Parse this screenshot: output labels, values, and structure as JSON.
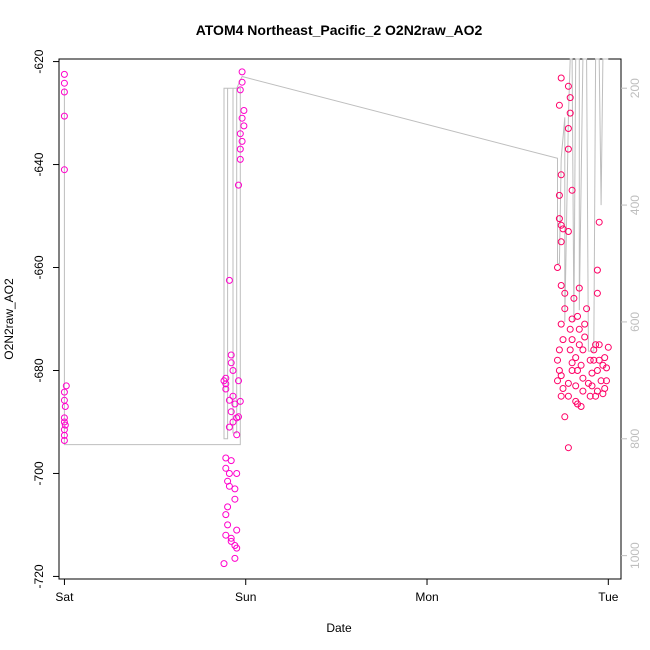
{
  "chart_data": {
    "type": "scatter",
    "title": "ATOM4 Northeast_Pacific_2 O2N2raw_AO2",
    "xlabel": "Date",
    "ylabel": "O2N2raw_AO2",
    "x_unit": "days",
    "xlim": [
      -0.03,
      3.07
    ],
    "ylim": [
      -720.5,
      -619.5
    ],
    "x_ticks": [
      {
        "value": 0,
        "label": "Sat"
      },
      {
        "value": 1,
        "label": "Sun"
      },
      {
        "value": 2,
        "label": "Mon"
      },
      {
        "value": 3,
        "label": "Tue"
      }
    ],
    "y_ticks": [
      {
        "value": -620,
        "label": "-620"
      },
      {
        "value": -640,
        "label": "-640"
      },
      {
        "value": -660,
        "label": "-660"
      },
      {
        "value": -680,
        "label": "-680"
      },
      {
        "value": -700,
        "label": "-700"
      },
      {
        "value": -720,
        "label": "-720"
      }
    ],
    "y2lim": [
      1040,
      150
    ],
    "y2_ticks": [
      {
        "value": 200,
        "label": "200"
      },
      {
        "value": 400,
        "label": "400"
      },
      {
        "value": 600,
        "label": "600"
      },
      {
        "value": 800,
        "label": "800"
      },
      {
        "value": 1000,
        "label": "1000"
      }
    ],
    "grid": false,
    "series": [
      {
        "type": "scatter",
        "color": "#ff00cc",
        "points": [
          [
            0.0,
            -622.5
          ],
          [
            0.0,
            -624.2
          ],
          [
            0.0,
            -625.9
          ],
          [
            0.0,
            -630.6
          ],
          [
            0.0,
            -641.0
          ],
          [
            0.01,
            -683.0
          ],
          [
            0.0,
            -684.2
          ],
          [
            0.0,
            -685.8
          ],
          [
            0.005,
            -687.0
          ],
          [
            0.0,
            -689.2
          ],
          [
            0.0,
            -690.0
          ],
          [
            0.005,
            -690.6
          ],
          [
            0.0,
            -691.5
          ],
          [
            0.0,
            -692.6
          ],
          [
            0.0,
            -693.6
          ],
          [
            0.89,
            -681.5
          ],
          [
            0.88,
            -682.0
          ],
          [
            0.89,
            -682.6
          ],
          [
            0.89,
            -683.6
          ],
          [
            0.92,
            -677.0
          ],
          [
            0.92,
            -678.5
          ],
          [
            0.93,
            -680.0
          ],
          [
            0.93,
            -685.0
          ],
          [
            0.91,
            -685.8
          ],
          [
            0.94,
            -686.5
          ],
          [
            0.92,
            -688.0
          ],
          [
            0.95,
            -689.2
          ],
          [
            0.93,
            -690.0
          ],
          [
            0.91,
            -691.0
          ],
          [
            0.95,
            -692.5
          ],
          [
            0.89,
            -697.0
          ],
          [
            0.92,
            -697.5
          ],
          [
            0.89,
            -699.0
          ],
          [
            0.91,
            -700.0
          ],
          [
            0.95,
            -700.0
          ],
          [
            0.9,
            -701.5
          ],
          [
            0.91,
            -702.5
          ],
          [
            0.94,
            -703.0
          ],
          [
            0.94,
            -705.0
          ],
          [
            0.9,
            -706.5
          ],
          [
            0.89,
            -708.0
          ],
          [
            0.9,
            -710.0
          ],
          [
            0.95,
            -711.0
          ],
          [
            0.89,
            -712.0
          ],
          [
            0.92,
            -712.6
          ],
          [
            0.92,
            -713.2
          ],
          [
            0.94,
            -714.0
          ],
          [
            0.95,
            -714.5
          ],
          [
            0.94,
            -716.5
          ],
          [
            0.88,
            -717.5
          ],
          [
            0.91,
            -662.5
          ],
          [
            0.96,
            -644.0
          ],
          [
            0.97,
            -639.0
          ],
          [
            0.98,
            -622.0
          ],
          [
            0.98,
            -624.0
          ],
          [
            0.97,
            -625.5
          ],
          [
            0.99,
            -629.5
          ],
          [
            0.98,
            -631.0
          ],
          [
            0.99,
            -632.5
          ],
          [
            0.97,
            -634.0
          ],
          [
            0.98,
            -635.5
          ],
          [
            0.97,
            -637.0
          ],
          [
            0.96,
            -682.0
          ],
          [
            0.97,
            -686.0
          ],
          [
            0.96,
            -689.0
          ]
        ]
      },
      {
        "type": "scatter",
        "color": "#ff0066",
        "points": [
          [
            2.74,
            -623.2
          ],
          [
            2.73,
            -628.5
          ],
          [
            2.74,
            -642.0
          ],
          [
            2.73,
            -646.0
          ],
          [
            2.73,
            -650.5
          ],
          [
            2.74,
            -651.8
          ],
          [
            2.75,
            -652.5
          ],
          [
            2.74,
            -655.0
          ],
          [
            2.72,
            -660.0
          ],
          [
            2.74,
            -663.5
          ],
          [
            2.76,
            -665.0
          ],
          [
            2.76,
            -668.0
          ],
          [
            2.74,
            -671.0
          ],
          [
            2.75,
            -674.0
          ],
          [
            2.73,
            -676.0
          ],
          [
            2.72,
            -678.0
          ],
          [
            2.73,
            -680.0
          ],
          [
            2.74,
            -681.0
          ],
          [
            2.72,
            -682.0
          ],
          [
            2.75,
            -683.5
          ],
          [
            2.74,
            -685.0
          ],
          [
            2.76,
            -689.0
          ],
          [
            2.78,
            -653.0
          ],
          [
            2.78,
            -637.0
          ],
          [
            2.79,
            -627.0
          ],
          [
            2.78,
            -624.8
          ],
          [
            2.79,
            -630.0
          ],
          [
            2.78,
            -633.0
          ],
          [
            2.8,
            -645.0
          ],
          [
            2.81,
            -666.0
          ],
          [
            2.8,
            -670.0
          ],
          [
            2.79,
            -672.0
          ],
          [
            2.8,
            -674.0
          ],
          [
            2.79,
            -676.0
          ],
          [
            2.8,
            -678.5
          ],
          [
            2.8,
            -680.0
          ],
          [
            2.78,
            -682.5
          ],
          [
            2.78,
            -685.0
          ],
          [
            2.78,
            -695.0
          ],
          [
            2.82,
            -686.0
          ],
          [
            2.82,
            -683.0
          ],
          [
            2.83,
            -680.0
          ],
          [
            2.82,
            -677.5
          ],
          [
            2.84,
            -675.0
          ],
          [
            2.84,
            -672.0
          ],
          [
            2.83,
            -669.5
          ],
          [
            2.84,
            -664.0
          ],
          [
            2.83,
            -686.5
          ],
          [
            2.85,
            -687.0
          ],
          [
            2.86,
            -684.0
          ],
          [
            2.86,
            -681.5
          ],
          [
            2.85,
            -679.0
          ],
          [
            2.86,
            -676.0
          ],
          [
            2.87,
            -673.5
          ],
          [
            2.87,
            -671.0
          ],
          [
            2.88,
            -668.0
          ],
          [
            2.89,
            -682.5
          ],
          [
            2.9,
            -685.0
          ],
          [
            2.9,
            -678.0
          ],
          [
            2.91,
            -683.0
          ],
          [
            2.91,
            -680.5
          ],
          [
            2.92,
            -678.0
          ],
          [
            2.92,
            -676.0
          ],
          [
            2.93,
            -675.0
          ],
          [
            2.93,
            -685.0
          ],
          [
            2.94,
            -684.0
          ],
          [
            2.94,
            -680.0
          ],
          [
            2.95,
            -678.0
          ],
          [
            2.95,
            -675.0
          ],
          [
            2.94,
            -665.0
          ],
          [
            2.94,
            -660.5
          ],
          [
            2.95,
            -651.2
          ],
          [
            2.96,
            -682.0
          ],
          [
            2.97,
            -684.5
          ],
          [
            2.97,
            -679.0
          ],
          [
            2.98,
            -677.5
          ],
          [
            2.98,
            -683.5
          ],
          [
            2.99,
            -682.0
          ],
          [
            2.99,
            -679.5
          ],
          [
            3.0,
            -675.5
          ]
        ]
      }
    ],
    "depth_line": {
      "color": "#bebebe",
      "points": [
        [
          0.0,
          200
        ],
        [
          0.0,
          810
        ],
        [
          0.97,
          810
        ],
        [
          0.97,
          200
        ],
        [
          0.88,
          200
        ],
        [
          0.88,
          800
        ],
        [
          0.9,
          800
        ],
        [
          0.9,
          200
        ],
        [
          0.93,
          200
        ],
        [
          0.93,
          790
        ],
        [
          0.95,
          790
        ],
        [
          0.95,
          200
        ],
        [
          0.98,
          180
        ],
        [
          2.72,
          320
        ],
        [
          2.72,
          500
        ],
        [
          2.73,
          500
        ],
        [
          2.74,
          320
        ],
        [
          2.76,
          250
        ],
        [
          2.76,
          600
        ],
        [
          2.78,
          250
        ],
        [
          2.79,
          150
        ],
        [
          2.8,
          150
        ],
        [
          2.81,
          600
        ],
        [
          2.82,
          150
        ],
        [
          2.84,
          150
        ],
        [
          2.84,
          580
        ],
        [
          2.86,
          150
        ],
        [
          2.88,
          150
        ],
        [
          2.89,
          650
        ],
        [
          2.92,
          650
        ],
        [
          2.93,
          150
        ],
        [
          2.95,
          150
        ],
        [
          2.96,
          400
        ],
        [
          2.97,
          150
        ],
        [
          3.0,
          150
        ]
      ]
    }
  }
}
